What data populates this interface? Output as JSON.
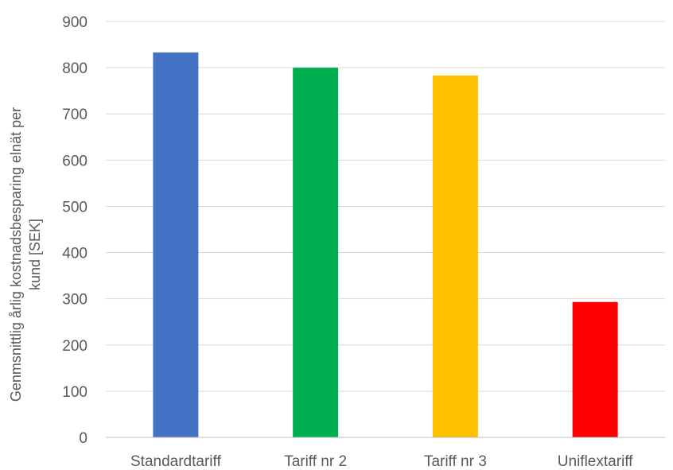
{
  "chart_data": {
    "type": "bar",
    "title": "",
    "xlabel": "",
    "ylabel_lines": [
      "Genmsnittlig årlig kostnadsbesparing elnät per",
      "kund [SEK]"
    ],
    "categories": [
      "Standardtariff",
      "Tariff nr 2",
      "Tariff nr 3",
      "Uniflextariff"
    ],
    "values": [
      833,
      800,
      783,
      293
    ],
    "colors": [
      "#4472C4",
      "#00B050",
      "#FFC000",
      "#FF0000"
    ],
    "ylim": [
      0,
      900
    ],
    "yticks": [
      "0",
      "100",
      "200",
      "300",
      "400",
      "500",
      "600",
      "700",
      "800",
      "900"
    ],
    "grid": true,
    "legend": "none"
  }
}
